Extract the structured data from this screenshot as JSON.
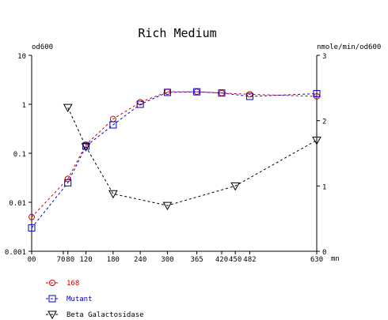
{
  "chart_data": {
    "type": "line",
    "title": "Rich Medium",
    "left_axis_label": "od600",
    "right_axis_label": "nmole/min/od600",
    "x_unit": "mn",
    "x_ticks": [
      "00",
      "70",
      "80",
      "120",
      "180",
      "240",
      "300",
      "365",
      "420",
      "450",
      "482",
      "630"
    ],
    "x_tick_values": [
      0,
      70,
      80,
      120,
      180,
      240,
      300,
      365,
      420,
      450,
      482,
      630
    ],
    "x_range": [
      0,
      630
    ],
    "left_axis": {
      "scale": "log",
      "range": [
        0.001,
        10
      ],
      "tick_labels": [
        "10",
        "1",
        "0.1",
        "0.01",
        "0.001"
      ],
      "tick_values": [
        10,
        1,
        0.1,
        0.01,
        0.001
      ]
    },
    "right_axis": {
      "scale": "linear",
      "range": [
        0,
        3
      ],
      "tick_labels": [
        "3",
        "2",
        "1",
        "0"
      ],
      "tick_values": [
        3,
        2,
        1,
        0
      ]
    },
    "grid": false,
    "legend_position": "bottom-left",
    "series": [
      {
        "name": "168",
        "axis": "left",
        "color": "#cc0000",
        "marker": "circle",
        "x": [
          0,
          80,
          120,
          180,
          240,
          300,
          365,
          420,
          482,
          630
        ],
        "y": [
          0.005,
          0.03,
          0.15,
          0.5,
          1.1,
          1.8,
          1.8,
          1.7,
          1.6,
          1.45
        ]
      },
      {
        "name": "Mutant",
        "axis": "left",
        "color": "#0000cc",
        "marker": "square",
        "x": [
          0,
          80,
          120,
          180,
          240,
          300,
          365,
          420,
          482,
          630
        ],
        "y": [
          0.003,
          0.025,
          0.14,
          0.38,
          1.0,
          1.75,
          1.8,
          1.7,
          1.45,
          1.65
        ]
      },
      {
        "name": "Beta Galactosidase",
        "axis": "right",
        "color": "#000000",
        "marker": "triangle-down",
        "x": [
          80,
          120,
          180,
          300,
          450,
          630
        ],
        "y": [
          2.2,
          1.6,
          0.88,
          0.7,
          1.0,
          1.7
        ]
      }
    ]
  }
}
